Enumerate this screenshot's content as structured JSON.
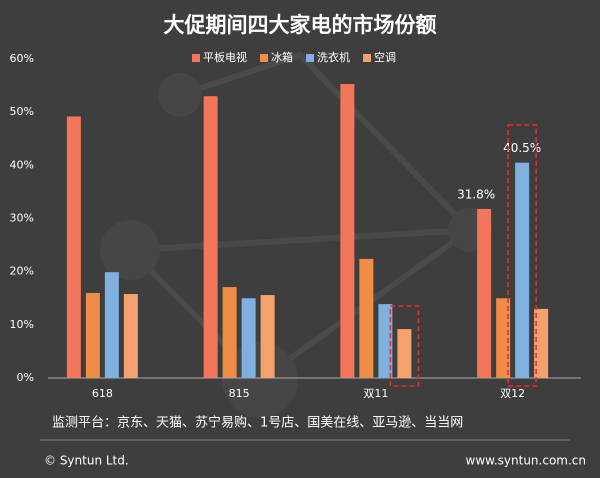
{
  "chart_data": {
    "type": "bar",
    "title": "大促期间四大家电的市场份额",
    "categories": [
      "618",
      "815",
      "双11",
      "双12"
    ],
    "series": [
      {
        "name": "平板电视",
        "color": "#f4765a",
        "values": [
          49.2,
          53.0,
          55.3,
          31.8
        ],
        "value_labels": [
          null,
          null,
          null,
          "31.8%"
        ]
      },
      {
        "name": "冰箱",
        "color": "#ef8c45",
        "values": [
          16.0,
          17.1,
          22.4,
          15.0
        ]
      },
      {
        "name": "洗衣机",
        "color": "#7fb0e0",
        "values": [
          19.9,
          15.0,
          13.9,
          40.5
        ],
        "value_labels": [
          null,
          null,
          null,
          "40.5%"
        ]
      },
      {
        "name": "空调",
        "color": "#f4a16e",
        "values": [
          15.8,
          15.6,
          9.2,
          13.0
        ]
      }
    ],
    "ylim": [
      0,
      60
    ],
    "yticks": [
      {
        "value": 0,
        "label": "0%"
      },
      {
        "value": 10,
        "label": "10%"
      },
      {
        "value": 20,
        "label": "20%"
      },
      {
        "value": 30,
        "label": "30%"
      },
      {
        "value": 40,
        "label": "40%"
      },
      {
        "value": 50,
        "label": "50%"
      },
      {
        "value": 60,
        "label": "60%"
      }
    ],
    "grid": false,
    "legend": "top"
  },
  "footer": {
    "note": "监测平台：京东、天猫、苏宁易购、1号店、国美在线、亚马逊、当当网",
    "copyright": "© Syntun Ltd.",
    "website": "www.syntun.com.cn"
  }
}
